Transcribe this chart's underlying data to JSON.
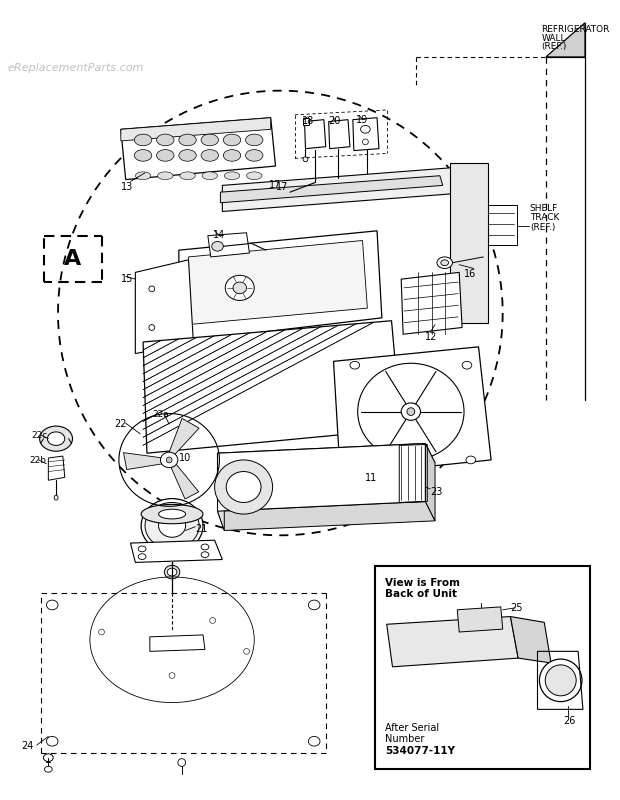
{
  "bg_color": "#ffffff",
  "watermark": "eReplacementParts.com",
  "inset_text": {
    "view_line1": "View is From",
    "view_line2": "Back of Unit",
    "serial_line1": "After Serial",
    "serial_line2": "Number",
    "serial_line3": "534077-11Y"
  },
  "ref_wall": "REFRIGERATOR\nWALL\n(REF.)",
  "ref_shelf": "SHELF\nTRACK\n(REF.)"
}
